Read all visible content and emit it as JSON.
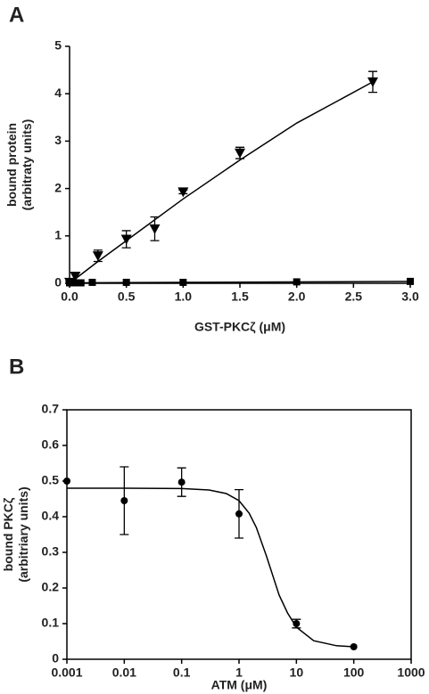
{
  "chart_data": [
    {
      "type": "scatter",
      "panel": "A",
      "y_label": [
        "bound protein",
        "(arbitraty units)"
      ],
      "x_label": "GST-PKCζ (μM)",
      "xlim": [
        0,
        3
      ],
      "ylim": [
        0,
        5
      ],
      "xticks": [
        {
          "value": 0,
          "label": "0.0"
        },
        0.5,
        {
          "value": 1,
          "label": "1.0"
        },
        1.5,
        {
          "value": 2,
          "label": "2.0"
        },
        2.5,
        {
          "value": 3,
          "label": "3.0"
        }
      ],
      "yticks": [
        0,
        1,
        2,
        3,
        4,
        5
      ],
      "frame": "axes",
      "xscale": "linear",
      "series": [
        {
          "marker": "triangle-down",
          "color": "#000000",
          "x": [
            0,
            0.05,
            0.25,
            0.5,
            0.75,
            1.0,
            1.5,
            2.67
          ],
          "values": [
            0.02,
            0.15,
            0.58,
            0.93,
            1.15,
            1.93,
            2.75,
            4.25
          ],
          "errors": [
            0.02,
            0.08,
            0.12,
            0.18,
            0.25,
            0.04,
            0.12,
            0.22
          ]
        },
        {
          "marker": "square",
          "color": "#000000",
          "x": [
            0,
            0.05,
            0.1,
            0.2,
            0.5,
            1.0,
            2.0,
            3.0
          ],
          "values": [
            0.01,
            0.01,
            0.01,
            0.02,
            0.02,
            0.02,
            0.03,
            0.04
          ],
          "errors": [
            null,
            null,
            null,
            null,
            null,
            null,
            null,
            null
          ]
        }
      ],
      "fits": [
        {
          "color": "#000000",
          "x": [
            0,
            0.25,
            0.5,
            1.0,
            1.5,
            2.0,
            2.67
          ],
          "values": [
            0,
            0.46,
            0.9,
            1.78,
            2.6,
            3.38,
            4.25
          ]
        },
        {
          "color": "#000000",
          "x": [
            0,
            3.0
          ],
          "values": [
            0.01,
            0.04
          ]
        }
      ]
    },
    {
      "type": "scatter",
      "panel": "B",
      "y_label": [
        "bound PKCζ",
        "(arbitriary units)"
      ],
      "x_label": "ATM (μM)",
      "xlim": [
        0.001,
        1000
      ],
      "ylim": [
        0,
        0.7
      ],
      "xticks": [
        0.001,
        0.01,
        0.1,
        1,
        10,
        100,
        1000
      ],
      "yticks": [
        0,
        0.1,
        0.2,
        0.3,
        0.4,
        0.5,
        0.6,
        0.7
      ],
      "frame": "box",
      "xscale": "log",
      "series": [
        {
          "marker": "circle",
          "color": "#000000",
          "x": [
            0.001,
            0.01,
            0.1,
            1,
            10,
            100
          ],
          "values": [
            0.5,
            0.445,
            0.497,
            0.408,
            0.1,
            0.035
          ],
          "errors": [
            null,
            0.095,
            0.04,
            0.068,
            0.012,
            null
          ]
        }
      ],
      "fits": [
        {
          "color": "#000000",
          "x": [
            0.001,
            0.01,
            0.1,
            0.3,
            0.6,
            1,
            1.5,
            2,
            3,
            5,
            7,
            10,
            20,
            50,
            100
          ],
          "values": [
            0.48,
            0.48,
            0.479,
            0.475,
            0.465,
            0.445,
            0.41,
            0.37,
            0.29,
            0.18,
            0.13,
            0.09,
            0.052,
            0.038,
            0.035
          ]
        }
      ]
    }
  ]
}
